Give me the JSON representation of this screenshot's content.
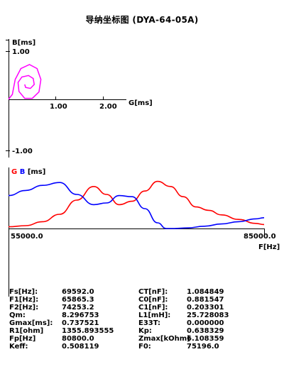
{
  "title": "导纳坐标图 (DYA-64-05A)",
  "chart_data": [
    {
      "type": "line",
      "name": "admittance-circle",
      "ylabel": "B[ms]",
      "xlabel": "G[ms]",
      "xticks": [
        "1.00",
        "2.00"
      ],
      "yticks": [
        "1.00",
        "-1.00"
      ],
      "xlim": [
        0,
        2.55
      ],
      "ylim": [
        -1.15,
        1.35
      ],
      "color": "#ff00ff",
      "points": [
        [
          0.0,
          0.0
        ],
        [
          0.08,
          0.1
        ],
        [
          0.14,
          0.4
        ],
        [
          0.26,
          0.62
        ],
        [
          0.44,
          0.7
        ],
        [
          0.6,
          0.62
        ],
        [
          0.68,
          0.4
        ],
        [
          0.64,
          0.15
        ],
        [
          0.5,
          0.02
        ],
        [
          0.34,
          0.02
        ],
        [
          0.22,
          0.16
        ],
        [
          0.2,
          0.34
        ],
        [
          0.28,
          0.45
        ],
        [
          0.42,
          0.48
        ],
        [
          0.52,
          0.42
        ],
        [
          0.54,
          0.3
        ],
        [
          0.46,
          0.22
        ],
        [
          0.36,
          0.24
        ],
        [
          0.34,
          0.3
        ]
      ]
    },
    {
      "type": "line",
      "name": "frequency-sweep",
      "legend": {
        "g": "G",
        "b": "B",
        "unit": "[ms]"
      },
      "xlabel": "F[Hz]",
      "xlim": [
        55000,
        85000
      ],
      "xticks": [
        "55000.0",
        "85000.0"
      ],
      "ylim": [
        0,
        1
      ],
      "series": [
        {
          "name": "G",
          "color": "#ff0000",
          "x": [
            55000,
            57000,
            59000,
            61000,
            63000,
            65000,
            66500,
            68000,
            69500,
            71000,
            72500,
            74000,
            75500,
            77000,
            78500,
            80000,
            82000,
            84000,
            85000
          ],
          "values": [
            0.03,
            0.05,
            0.12,
            0.25,
            0.5,
            0.74,
            0.6,
            0.42,
            0.48,
            0.66,
            0.83,
            0.74,
            0.56,
            0.38,
            0.32,
            0.24,
            0.16,
            0.09,
            0.07
          ]
        },
        {
          "name": "B",
          "color": "#0000ff",
          "x": [
            55000,
            57000,
            59000,
            61000,
            63000,
            65000,
            66500,
            68000,
            69500,
            71000,
            72500,
            73500,
            74500,
            76000,
            78000,
            80000,
            82000,
            84000,
            85000
          ],
          "values": [
            0.58,
            0.67,
            0.76,
            0.81,
            0.6,
            0.42,
            0.45,
            0.58,
            0.56,
            0.35,
            0.1,
            0.0,
            0.0,
            0.01,
            0.04,
            0.08,
            0.12,
            0.17,
            0.19
          ]
        }
      ]
    }
  ],
  "params": [
    {
      "k1": "Fs[Hz]:",
      "v1": "69592.0",
      "k2": "CT[nF]:",
      "v2": "1.084849"
    },
    {
      "k1": "F1[Hz]:",
      "v1": "65865.3",
      "k2": "C0[nF]:",
      "v2": "0.881547"
    },
    {
      "k1": "F2[Hz]:",
      "v1": "74253.2",
      "k2": "C1[nF]:",
      "v2": "0.203301"
    },
    {
      "k1": "Qm:",
      "v1": "8.296753",
      "k2": "L1[mH]:",
      "v2": "25.728083"
    },
    {
      "k1": "Gmax[ms]:",
      "v1": "0.737521",
      "k2": "E33T:",
      "v2": "0.000000"
    },
    {
      "k1": "R1[ohm]",
      "v1": "1355.893555",
      "k2": "Kp:",
      "v2": "0.638329"
    },
    {
      "k1": "Fp[Hz]",
      "v1": "80800.0",
      "k2": "Zmax[kOhm]",
      "v2": "6.108359"
    },
    {
      "k1": "Keff:",
      "v1": "0.508119",
      "k2": "F0:",
      "v2": "75196.0"
    }
  ]
}
